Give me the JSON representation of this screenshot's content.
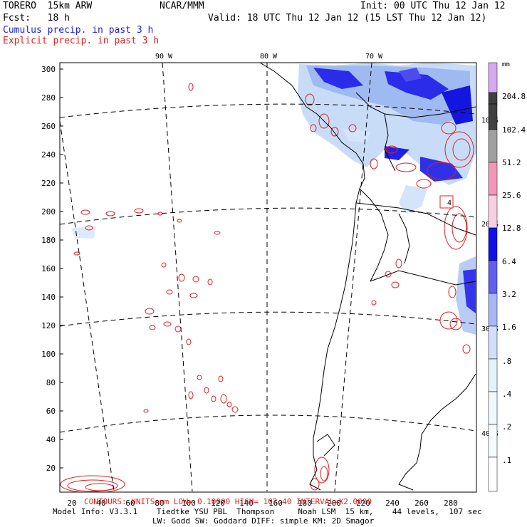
{
  "header": {
    "model": "TORERO  15km ARW",
    "org": "NCAR/MMM",
    "init": "Init: 00 UTC Thu 12 Jan 12",
    "fcst": "Fcst:   18 h",
    "valid": "Valid: 18 UTC Thu 12 Jan 12 (15 LST Thu 12 Jan 12)",
    "cumulus_label": "Cumulus precip. in past 3 h",
    "explicit_label": "Explicit precip. in past 3 h",
    "cumulus_color": "#2020e0",
    "explicit_color": "#e02020"
  },
  "map": {
    "lon_labels": [
      "90 W",
      "80 W",
      "70 W"
    ],
    "lat_labels": [
      "10 S",
      "20 S",
      "30 S",
      "40 S"
    ],
    "y_ticks": [
      "300",
      "280",
      "260",
      "240",
      "220",
      "200",
      "180",
      "160",
      "140",
      "120",
      "100",
      "80",
      "60",
      "40",
      "20"
    ],
    "x_ticks": [
      "20",
      "40",
      "60",
      "80",
      "100",
      "120",
      "140",
      "160",
      "180",
      "200",
      "220",
      "240",
      "260",
      "280"
    ],
    "annotation_box": "4"
  },
  "footer": {
    "contours": "CONTOURS:  UNITS=mm   LOW= 0.10000    HIGH= 102.40      INTERVAL=X2.0000",
    "model_info": "Model Info: V3.3.1    Tiedtke YSU PBL  Thompson     Noah LSM  15 km,    44 levels,  107 sec",
    "model_info2": "LW: Godd SW: Goddard DIFF: simple KM: 2D Smagor"
  },
  "colorbar": {
    "unit": "mm",
    "labels": [
      "204.8",
      "102.4",
      "51.2",
      "25.6",
      "12.8",
      "6.4",
      "3.2",
      "1.6",
      ".8",
      ".4",
      ".2",
      ".1"
    ],
    "colors": [
      "#d8a8f0",
      "#404040",
      "#a0a0a0",
      "#d8d8d8",
      "#f0a0c0",
      "#f8d0e0",
      "#1010e8",
      "#5050e8",
      "#9090f0",
      "#c8d8f8",
      "#e0eefc",
      "#eef8fc",
      "#f6fbfe",
      "#ffffff"
    ]
  }
}
